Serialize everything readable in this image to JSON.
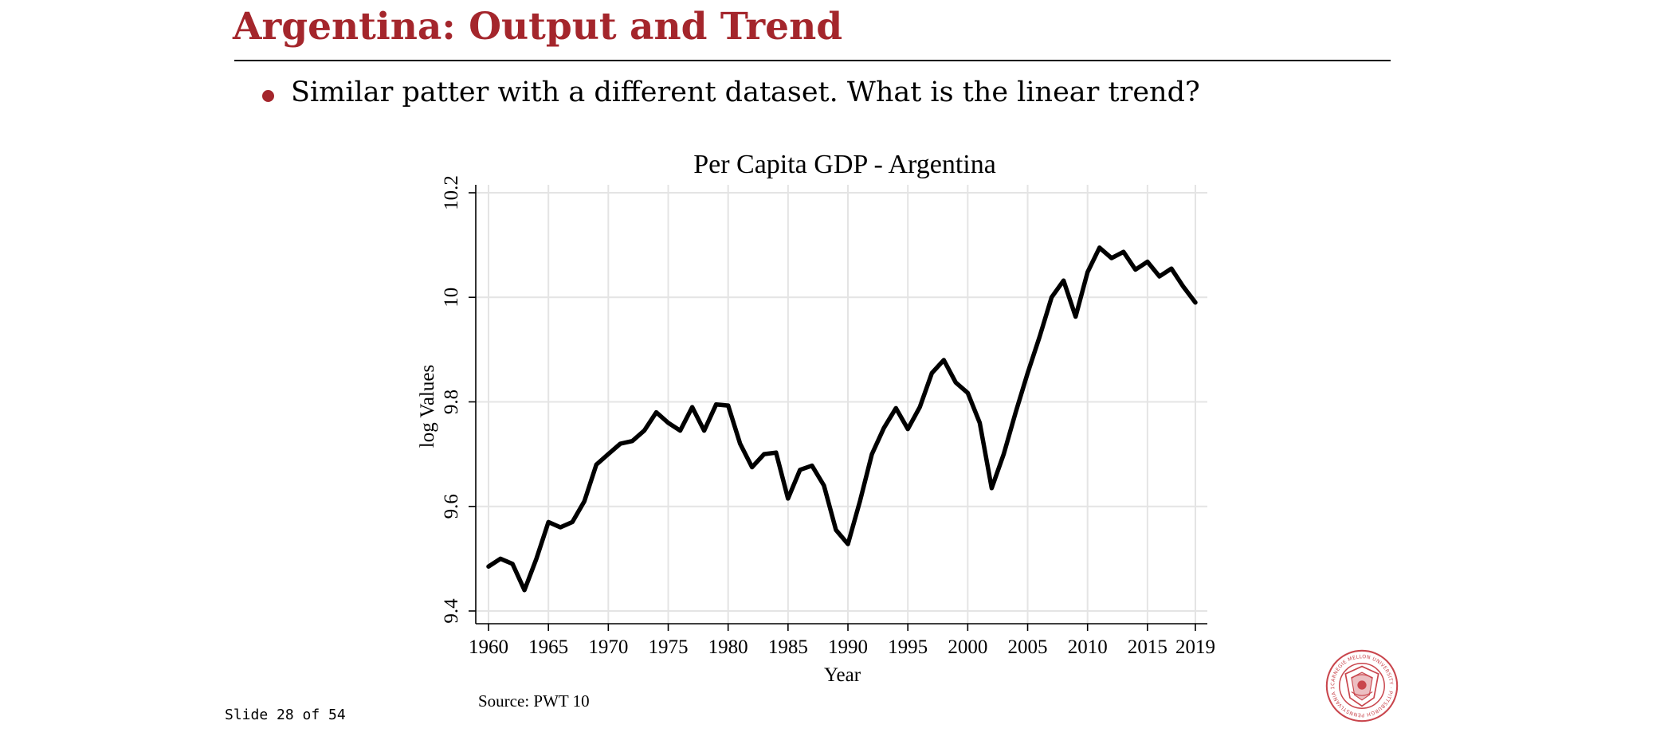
{
  "slide": {
    "title": "Argentina: Output and Trend",
    "bullets": [
      "Similar patter with a different dataset. What is the linear trend?"
    ],
    "source": "Source: PWT 10",
    "counter": "Slide 28 of 54",
    "accent_color": "#a4262c",
    "logo_icon": "carnegie-mellon-university-seal-icon",
    "logo_text": "CARNEGIE MELLON UNIVERSITY · PITTSBURGH PENNSYLVANIA 1900"
  },
  "chart_data": {
    "type": "line",
    "title": "Per Capita GDP - Argentina",
    "xlabel": "Year",
    "ylabel": "log Values",
    "xlim": [
      1960,
      2019
    ],
    "ylim": [
      9.4,
      10.2
    ],
    "xticks": [
      "1960",
      "1965",
      "1970",
      "1975",
      "1980",
      "1985",
      "1990",
      "1995",
      "2000",
      "2005",
      "2010",
      "2015",
      "2019"
    ],
    "yticks": [
      "9.4",
      "9.6",
      "9.8",
      "10",
      "10.2"
    ],
    "grid": true,
    "line_color": "#000000",
    "series": [
      {
        "x": [
          1960,
          1961,
          1962,
          1963,
          1964,
          1965,
          1966,
          1967,
          1968,
          1969,
          1970,
          1971,
          1972,
          1973,
          1974,
          1975,
          1976,
          1977,
          1978,
          1979,
          1980,
          1981,
          1982,
          1983,
          1984,
          1985,
          1986,
          1987,
          1988,
          1989,
          1990,
          1991,
          1992,
          1993,
          1994,
          1995,
          1996,
          1997,
          1998,
          1999,
          2000,
          2001,
          2002,
          2003,
          2004,
          2005,
          2006,
          2007,
          2008,
          2009,
          2010,
          2011,
          2012,
          2013,
          2014,
          2015,
          2016,
          2017,
          2018,
          2019
        ],
        "values": [
          9.485,
          9.5,
          9.49,
          9.44,
          9.5,
          9.57,
          9.56,
          9.57,
          9.61,
          9.68,
          9.7,
          9.72,
          9.725,
          9.745,
          9.78,
          9.76,
          9.745,
          9.79,
          9.745,
          9.795,
          9.793,
          9.72,
          9.675,
          9.7,
          9.703,
          9.615,
          9.67,
          9.678,
          9.64,
          9.555,
          9.528,
          9.61,
          9.7,
          9.75,
          9.788,
          9.748,
          9.79,
          9.855,
          9.88,
          9.837,
          9.817,
          9.76,
          9.635,
          9.7,
          9.78,
          9.855,
          9.925,
          10.0,
          10.032,
          9.963,
          10.048,
          10.095,
          10.075,
          10.087,
          10.053,
          10.068,
          10.04,
          10.055,
          10.02,
          9.99
        ]
      }
    ]
  }
}
